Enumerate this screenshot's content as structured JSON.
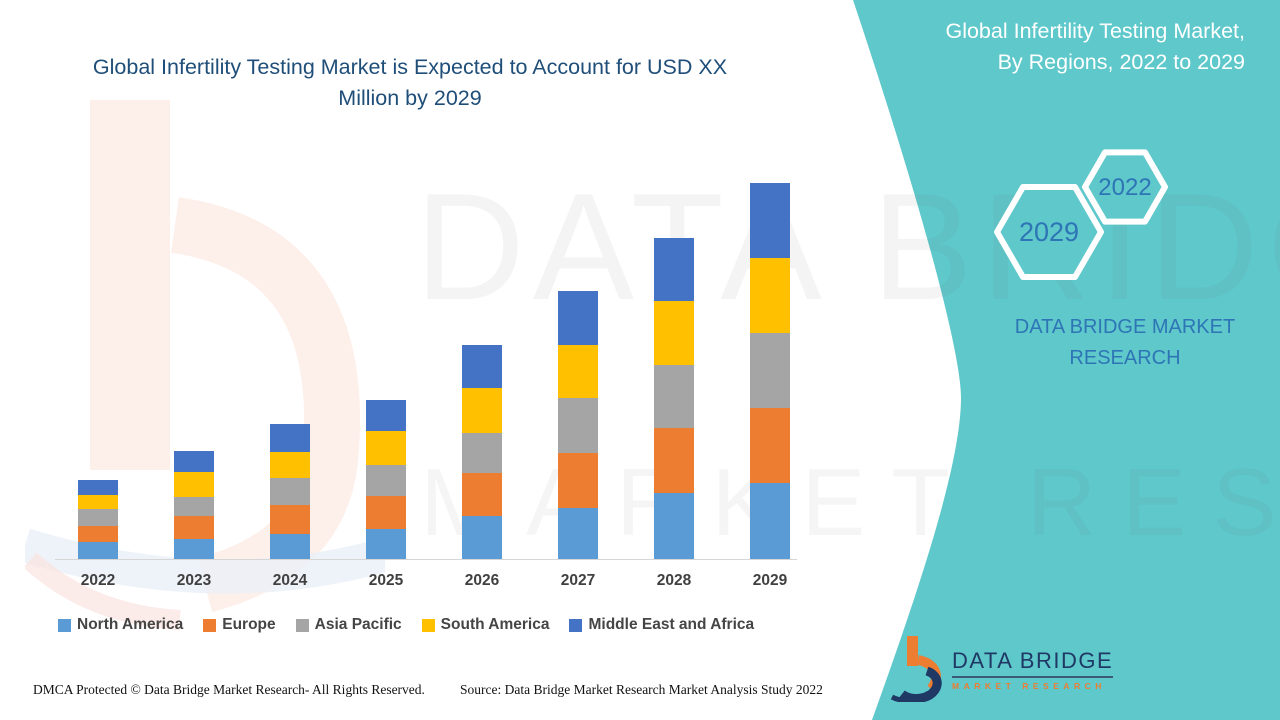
{
  "header": {
    "title": "Global Infertility Testing Market is Expected to Account for USD XX Million by 2029"
  },
  "chart_data": {
    "type": "bar",
    "stacked": true,
    "title": "Global Infertility Testing Market is Expected to Account for USD XX Million by 2029",
    "xlabel": "",
    "ylabel": "",
    "value_axis_shown": false,
    "grid": false,
    "legend_position": "bottom",
    "categories": [
      "2022",
      "2023",
      "2024",
      "2025",
      "2026",
      "2027",
      "2028",
      "2029"
    ],
    "series": [
      {
        "name": "North America",
        "color": "#5B9BD5",
        "values": [
          17,
          20,
          25,
          30,
          43,
          51,
          66,
          76
        ]
      },
      {
        "name": "Europe",
        "color": "#ED7D31",
        "values": [
          16,
          23,
          29,
          33,
          43,
          55,
          65,
          75
        ]
      },
      {
        "name": "Asia Pacific",
        "color": "#A5A5A5",
        "values": [
          17,
          19,
          27,
          31,
          40,
          55,
          63,
          75
        ]
      },
      {
        "name": "South America",
        "color": "#FFC000",
        "values": [
          14,
          25,
          26,
          34,
          45,
          53,
          64,
          75
        ]
      },
      {
        "name": "Middle East and Africa",
        "color": "#4472C4",
        "values": [
          15,
          21,
          28,
          31,
          43,
          54,
          63,
          75
        ]
      }
    ],
    "stack_totals": [
      79,
      108,
      135,
      159,
      214,
      268,
      321,
      376
    ]
  },
  "side_panel": {
    "title": "Global Infertility Testing Market, By Regions, 2022 to 2029",
    "hex_year_small": "2022",
    "hex_year_large": "2029",
    "brand_caption": "DATA BRIDGE MARKET RESEARCH",
    "teal_color": "#5EC8CB",
    "hex_text_color": "#2E75B6"
  },
  "logo": {
    "name": "DATA BRIDGE",
    "subtitle": "MARKET RESEARCH"
  },
  "watermark": {
    "line1": "DATA BRIDGE",
    "line2": "MARKET RESEARCH"
  },
  "footer": {
    "dmca": "DMCA Protected © Data Bridge Market Research- All Rights Reserved.",
    "source": "Source: Data Bridge Market Research Market Analysis Study 2022"
  }
}
